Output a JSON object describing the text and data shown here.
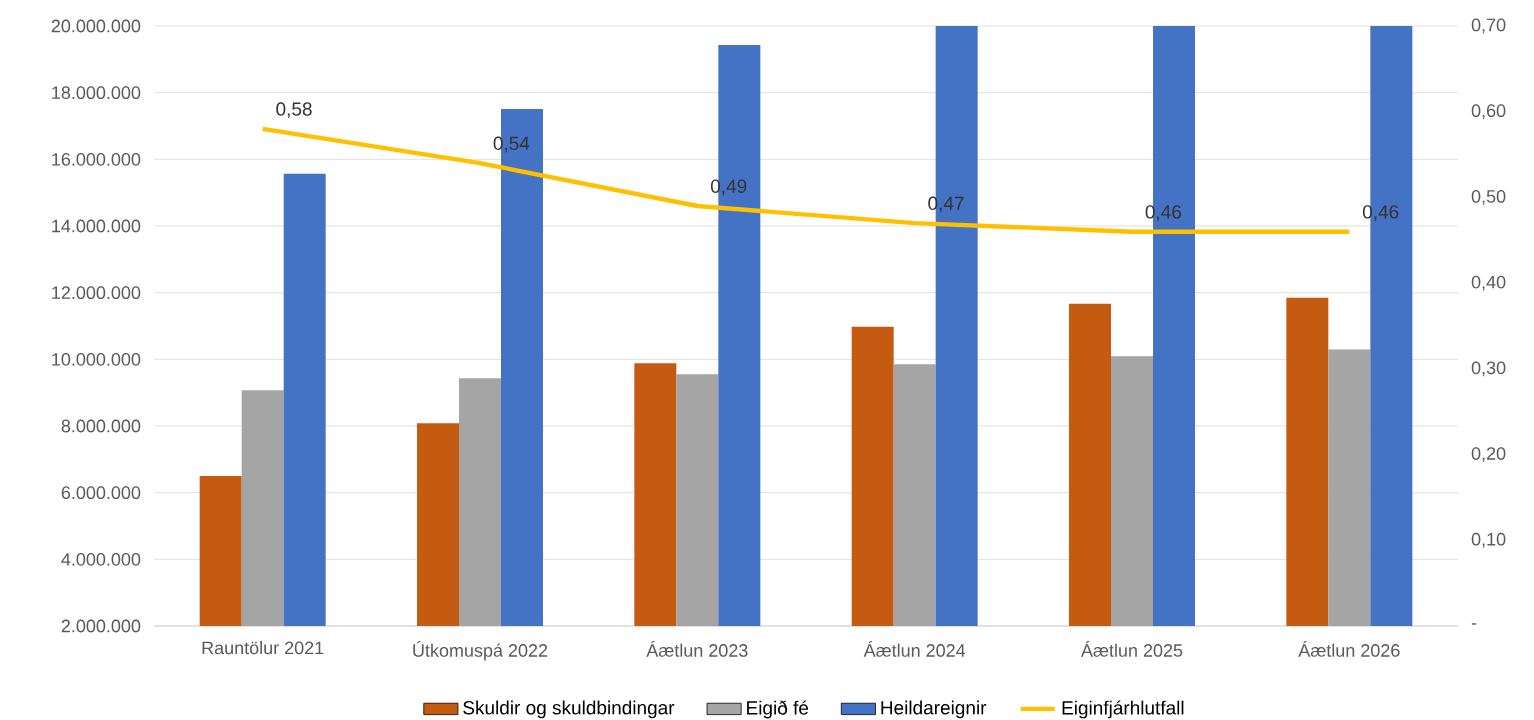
{
  "chart_data": {
    "type": "bar",
    "categories": [
      "Rauntölur 2021",
      "Útkomuspá 2022",
      "Áætlun 2023",
      "Áætlun 2024",
      "Áætlun 2025",
      "Áætlun 2026"
    ],
    "series": [
      {
        "name": "Skuldir og skuldbindingar",
        "color": "#c55a11",
        "values": [
          6500000,
          8080000,
          9880000,
          10980000,
          11670000,
          11850000
        ]
      },
      {
        "name": "Eigið fé",
        "color": "#a5a5a5",
        "values": [
          9070000,
          9430000,
          9550000,
          9850000,
          10090000,
          10300000
        ]
      },
      {
        "name": "Heildareignir",
        "color": "#4472c4",
        "values": [
          15570000,
          17510000,
          19430000,
          20000000,
          20000000,
          20000000
        ]
      },
      {
        "name": "Eiginfjárhlutfall",
        "color": "#ffc000",
        "type": "line",
        "axis": "y2",
        "values": [
          0.58,
          0.54,
          0.49,
          0.47,
          0.46,
          0.46
        ],
        "value_labels": [
          "0,58",
          "0,54",
          "0,49",
          "0,47",
          "0,46",
          "0,46"
        ]
      }
    ],
    "ylim": [
      2000000,
      20000000
    ],
    "yticks": [
      {
        "value": 2000000,
        "label": "2.000.000"
      },
      {
        "value": 4000000,
        "label": "4.000.000"
      },
      {
        "value": 6000000,
        "label": "6.000.000"
      },
      {
        "value": 8000000,
        "label": "8.000.000"
      },
      {
        "value": 10000000,
        "label": "10.000.000"
      },
      {
        "value": 12000000,
        "label": "12.000.000"
      },
      {
        "value": 14000000,
        "label": "14.000.000"
      },
      {
        "value": 16000000,
        "label": "16.000.000"
      },
      {
        "value": 18000000,
        "label": "18.000.000"
      },
      {
        "value": 20000000,
        "label": "20.000.000"
      }
    ],
    "y2lim": [
      0,
      0.7
    ],
    "y2ticks": [
      {
        "value": 0,
        "label": "-"
      },
      {
        "value": 0.1,
        "label": "0,10"
      },
      {
        "value": 0.2,
        "label": "0,20"
      },
      {
        "value": 0.3,
        "label": "0,30"
      },
      {
        "value": 0.4,
        "label": "0,40"
      },
      {
        "value": 0.5,
        "label": "0,50"
      },
      {
        "value": 0.6,
        "label": "0,60"
      },
      {
        "value": 0.7,
        "label": "0,70"
      }
    ],
    "grid": "y",
    "legend": "bottom"
  }
}
